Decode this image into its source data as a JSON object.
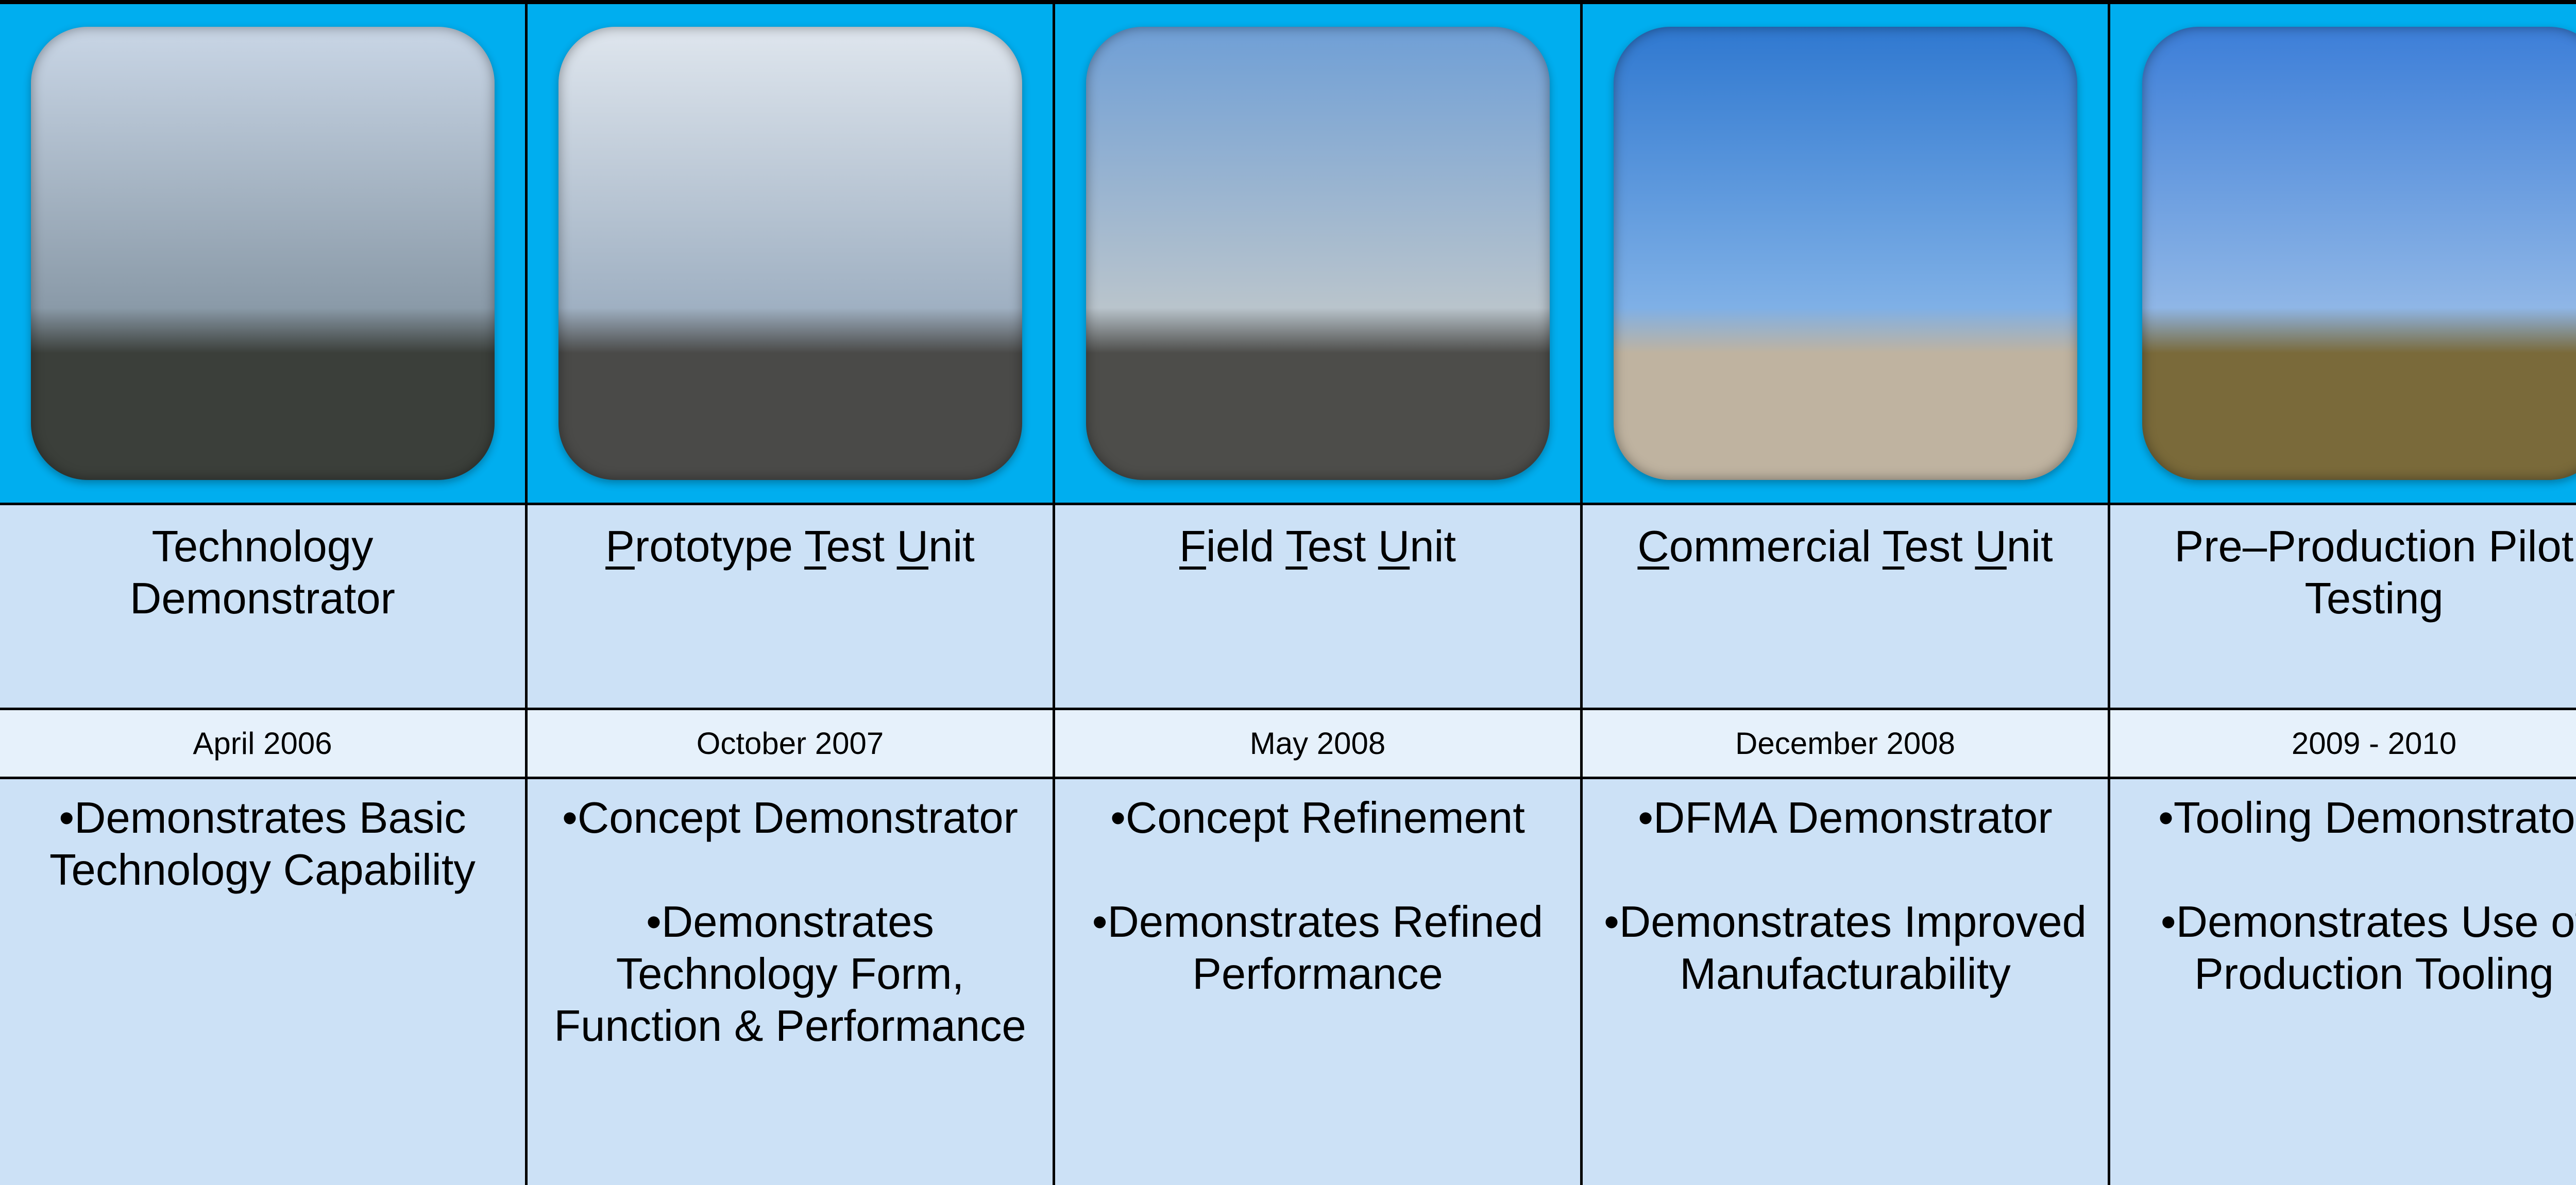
{
  "columns": [
    {
      "title": "Technology Demonstrator",
      "date": "April 2006",
      "bullets": [
        "•Demonstrates Basic Technology Capability"
      ]
    },
    {
      "title": "Prototype Test Unit",
      "underline_initials": true,
      "date": "October 2007",
      "bullets": [
        "•Concept Demonstrator",
        "•Demonstrates Technology Form, Function & Performance"
      ]
    },
    {
      "title": "Field Test Unit",
      "underline_initials": true,
      "date": "May 2008",
      "bullets": [
        "•Concept Refinement",
        "•Demonstrates Refined Performance"
      ]
    },
    {
      "title": "Commercial Test Unit",
      "underline_initials": true,
      "date": "December 2008",
      "bullets": [
        "•DFMA Demonstrator",
        "•Demonstrates Improved Manufacturability"
      ]
    },
    {
      "title": "Pre–Production Pilot Testing",
      "date": "2009 - 2010",
      "bullets": [
        "•Tooling Demonstrator",
        "•Demonstrates Use of Production Tooling"
      ]
    }
  ]
}
